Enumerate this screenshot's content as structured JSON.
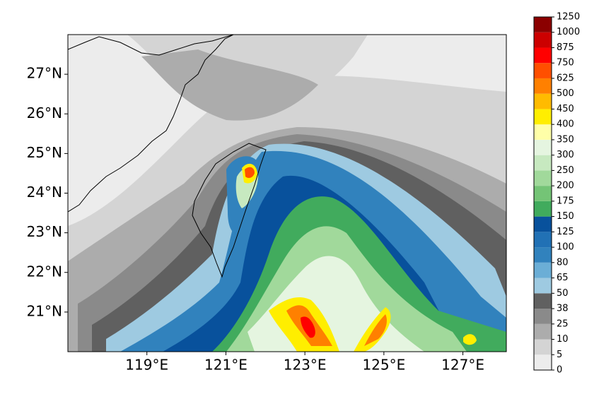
{
  "map": {
    "xlim": [
      117,
      128.1
    ],
    "ylim": [
      20,
      28
    ],
    "xticks": [
      {
        "value": 119,
        "label": "119°E"
      },
      {
        "value": 121,
        "label": "121°E"
      },
      {
        "value": 123,
        "label": "123°E"
      },
      {
        "value": 125,
        "label": "125°E"
      },
      {
        "value": 127,
        "label": "127°E"
      }
    ],
    "yticks": [
      {
        "value": 21,
        "label": "21°N"
      },
      {
        "value": 22,
        "label": "22°N"
      },
      {
        "value": 23,
        "label": "23°N"
      },
      {
        "value": 24,
        "label": "24°N"
      },
      {
        "value": 25,
        "label": "25°N"
      },
      {
        "value": 26,
        "label": "26°N"
      },
      {
        "value": 27,
        "label": "27°N"
      }
    ],
    "colorbar": {
      "levels": [
        0,
        5,
        10,
        25,
        38,
        50,
        65,
        80,
        100,
        125,
        150,
        175,
        200,
        250,
        300,
        350,
        400,
        450,
        500,
        625,
        750,
        875,
        1000,
        1250
      ],
      "colors": [
        "#ececec",
        "#d4d4d4",
        "#acacac",
        "#8a8a8a",
        "#606060",
        "#9ecae1",
        "#6baed6",
        "#3182bd",
        "#2171b5",
        "#08519c",
        "#41ab5d",
        "#74c476",
        "#a1d99b",
        "#c7e9c0",
        "#e5f5e0",
        "#ffffa8",
        "#ffee00",
        "#ffbb00",
        "#ff8000",
        "#ff4f00",
        "#ff0000",
        "#cc0000",
        "#8b0000"
      ]
    }
  }
}
